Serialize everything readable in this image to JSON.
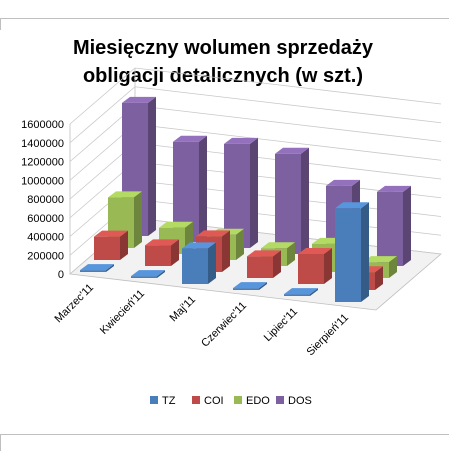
{
  "chart_data": {
    "type": "bar",
    "title_lines": [
      "Miesięczny wolumen sprzedaży",
      "obligacji detalicznych (w szt.)"
    ],
    "categories": [
      "Marzec'11",
      "Kwiecień'11",
      "Maj'11",
      "Czerwiec'11",
      "Lipiec'11",
      "Sierpień'11"
    ],
    "series": [
      {
        "name": "TZ",
        "color": "#4a7ebb",
        "values": [
          20000,
          20000,
          380000,
          20000,
          20000,
          1000000
        ]
      },
      {
        "name": "COI",
        "color": "#be4b48",
        "values": [
          250000,
          220000,
          380000,
          230000,
          320000,
          190000
        ]
      },
      {
        "name": "EDO",
        "color": "#98b954",
        "values": [
          540000,
          280000,
          270000,
          190000,
          300000,
          170000
        ]
      },
      {
        "name": "DOS",
        "color": "#7d60a0",
        "values": [
          1420000,
          1070000,
          1110000,
          1070000,
          790000,
          790000
        ]
      }
    ],
    "yticks": [
      0,
      200000,
      400000,
      600000,
      800000,
      1000000,
      1200000,
      1400000,
      1600000
    ],
    "ylim": [
      0,
      1600000
    ],
    "grid": true,
    "legend_position": "bottom"
  }
}
